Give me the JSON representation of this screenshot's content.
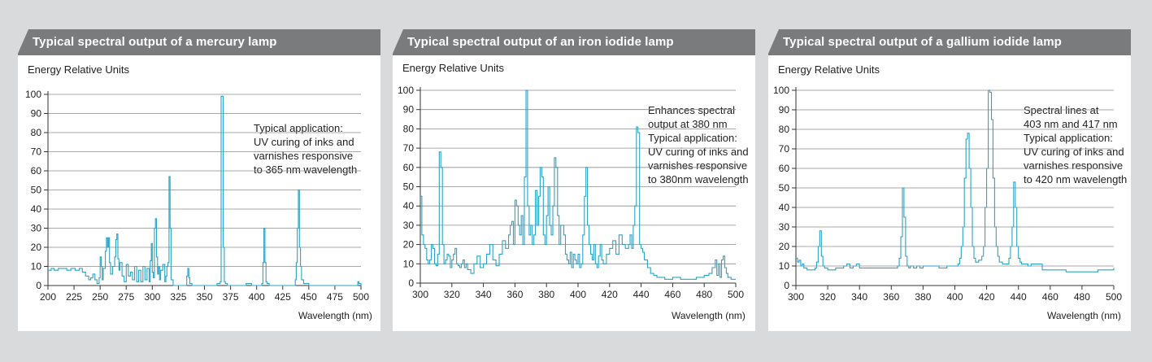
{
  "colors": {
    "line": "#2aa3c6",
    "grid": "#8c8c8c",
    "axis": "#333333",
    "title_bg": "#7a7b7d",
    "page_bg": "#d9dadb"
  },
  "chart_data": [
    {
      "type": "line",
      "title": "Typical spectral output of a mercury lamp",
      "ylabel": "Energy Relative Units",
      "xlabel": "Wavelength (nm)",
      "xlim": [
        200,
        500
      ],
      "ylim": [
        0,
        100
      ],
      "xticks": [
        "200",
        "225",
        "250",
        "275",
        "300",
        "325",
        "350",
        "375",
        "400",
        "425",
        "450",
        "475",
        "500"
      ],
      "yticks": [
        "0",
        "10",
        "20",
        "30",
        "40",
        "50",
        "60",
        "70",
        "80",
        "90",
        "100"
      ],
      "annotation": [
        "Typical application:",
        "UV curing of inks and",
        "varnishes responsive",
        "to 365 nm wavelength"
      ],
      "series": [
        {
          "x": [
            200,
            203,
            206,
            210,
            214,
            218,
            222,
            226,
            230,
            233,
            236,
            239,
            241,
            243,
            245,
            247,
            249,
            250,
            251,
            252,
            253,
            255,
            256,
            257,
            258,
            259,
            260,
            262,
            264,
            265,
            266,
            267,
            268,
            269,
            271,
            273,
            275,
            277,
            279,
            281,
            283,
            285,
            287,
            289,
            291,
            293,
            295,
            297,
            298,
            299,
            300,
            301,
            302,
            303,
            304,
            305,
            306,
            307,
            308,
            310,
            312,
            313,
            314,
            315,
            316,
            317,
            318,
            320,
            325,
            330,
            333,
            334,
            335,
            336,
            338,
            340,
            345,
            350,
            355,
            360,
            362,
            364,
            365,
            366,
            367,
            368,
            369,
            370,
            372,
            375,
            380,
            385,
            390,
            395,
            400,
            403,
            405,
            406,
            407,
            408,
            409,
            410,
            412,
            415,
            420,
            425,
            430,
            435,
            437,
            438,
            439,
            440,
            441,
            442,
            443,
            445,
            450,
            455,
            460,
            465,
            470,
            475,
            480,
            485,
            490,
            495,
            497,
            498,
            500
          ],
          "y": [
            8,
            9,
            8,
            9,
            9,
            8,
            9,
            8,
            9,
            7,
            5,
            3,
            4,
            6,
            3,
            1,
            4,
            15,
            10,
            3,
            9,
            18,
            25,
            20,
            25,
            12,
            6,
            10,
            15,
            24,
            27,
            14,
            8,
            12,
            5,
            2,
            11,
            5,
            7,
            3,
            10,
            2,
            8,
            2,
            10,
            3,
            9,
            2,
            13,
            22,
            7,
            4,
            30,
            35,
            15,
            6,
            10,
            3,
            8,
            11,
            2,
            5,
            10,
            12,
            57,
            30,
            3,
            0,
            0,
            0,
            5,
            9,
            4,
            1,
            0,
            0,
            0,
            0,
            0,
            0,
            1,
            1,
            2,
            99,
            99,
            20,
            2,
            1,
            0,
            0,
            0,
            0,
            1,
            0,
            0,
            0,
            1,
            12,
            30,
            12,
            2,
            1,
            0,
            0,
            0,
            0,
            0,
            0,
            3,
            12,
            30,
            50,
            20,
            10,
            3,
            1,
            0,
            0,
            0,
            0,
            0,
            0,
            0,
            0,
            0,
            0,
            2,
            1,
            0
          ]
        }
      ]
    },
    {
      "type": "line",
      "title": "Typical spectral output of an iron iodide lamp",
      "ylabel": "Energy Relative Units",
      "xlabel": "Wavelength (nm)",
      "xlim": [
        300,
        500
      ],
      "ylim": [
        0,
        100
      ],
      "xticks": [
        "300",
        "320",
        "340",
        "360",
        "380",
        "400",
        "420",
        "440",
        "460",
        "480",
        "500"
      ],
      "yticks": [
        "0",
        "10",
        "20",
        "30",
        "40",
        "50",
        "60",
        "70",
        "80",
        "90",
        "100"
      ],
      "annotation": [
        "Enhances spectral",
        "output at 380 nm",
        "Typical application:",
        "UV curing of inks and",
        "varnishes responsive",
        "to 380nm wavelength"
      ],
      "series": [
        {
          "x": [
            300,
            301,
            302,
            303,
            304,
            305,
            306,
            307,
            308,
            309,
            310,
            311,
            312,
            313,
            314,
            315,
            316,
            317,
            318,
            319,
            320,
            321,
            322,
            323,
            324,
            325,
            326,
            327,
            328,
            329,
            330,
            332,
            334,
            336,
            338,
            340,
            342,
            344,
            346,
            348,
            350,
            352,
            354,
            356,
            357,
            358,
            359,
            360,
            361,
            362,
            363,
            364,
            365,
            366,
            367,
            368,
            369,
            370,
            371,
            372,
            373,
            374,
            375,
            376,
            377,
            378,
            379,
            380,
            381,
            382,
            383,
            384,
            385,
            386,
            387,
            388,
            389,
            390,
            391,
            392,
            393,
            394,
            395,
            396,
            397,
            398,
            399,
            400,
            401,
            402,
            403,
            404,
            405,
            406,
            407,
            408,
            409,
            410,
            411,
            412,
            413,
            414,
            415,
            416,
            418,
            420,
            422,
            424,
            426,
            428,
            430,
            432,
            433,
            434,
            435,
            436,
            437,
            438,
            439,
            440,
            441,
            442,
            444,
            446,
            448,
            450,
            455,
            460,
            465,
            470,
            475,
            480,
            483,
            485,
            487,
            488,
            489,
            490,
            491,
            492,
            493,
            494,
            495,
            496,
            497,
            498,
            500
          ],
          "y": [
            45,
            25,
            20,
            18,
            12,
            10,
            12,
            20,
            18,
            10,
            9,
            15,
            68,
            60,
            20,
            10,
            12,
            15,
            14,
            8,
            12,
            15,
            18,
            10,
            9,
            8,
            10,
            12,
            8,
            10,
            7,
            5,
            10,
            14,
            8,
            10,
            15,
            20,
            12,
            9,
            15,
            22,
            18,
            25,
            30,
            32,
            20,
            43,
            40,
            30,
            25,
            35,
            20,
            55,
            100,
            40,
            25,
            30,
            20,
            25,
            48,
            30,
            45,
            60,
            55,
            25,
            20,
            35,
            50,
            30,
            25,
            40,
            65,
            60,
            35,
            20,
            30,
            30,
            25,
            15,
            12,
            10,
            16,
            8,
            15,
            12,
            10,
            15,
            8,
            10,
            25,
            45,
            60,
            30,
            20,
            15,
            12,
            20,
            10,
            8,
            14,
            20,
            12,
            10,
            15,
            18,
            22,
            15,
            25,
            20,
            18,
            20,
            25,
            18,
            30,
            40,
            81,
            78,
            20,
            18,
            16,
            12,
            8,
            5,
            4,
            3,
            2,
            3,
            2,
            2,
            3,
            4,
            5,
            8,
            12,
            4,
            10,
            3,
            12,
            14,
            8,
            5,
            3,
            3,
            2,
            2,
            2
          ]
        }
      ]
    },
    {
      "type": "line",
      "title": "Typical spectral output of a gallium iodide lamp",
      "ylabel": "Energy Relative Units",
      "xlabel": "Wavelength (nm)",
      "xlim": [
        300,
        500
      ],
      "ylim": [
        0,
        100
      ],
      "xticks": [
        "300",
        "320",
        "340",
        "360",
        "380",
        "400",
        "420",
        "440",
        "460",
        "480",
        "500"
      ],
      "yticks": [
        "0",
        "10",
        "20",
        "30",
        "40",
        "50",
        "60",
        "70",
        "80",
        "90",
        "100"
      ],
      "annotation": [
        "Spectral lines at",
        "403 nm and 417 nm",
        "Typical application:",
        "UV curing of inks and",
        "varnishes responsive",
        "to 420 nm wavelength"
      ],
      "series": [
        {
          "x": [
            300,
            301,
            302,
            303,
            304,
            305,
            307,
            310,
            312,
            313,
            314,
            315,
            316,
            317,
            318,
            320,
            325,
            330,
            332,
            334,
            336,
            338,
            340,
            345,
            350,
            355,
            360,
            364,
            365,
            366,
            367,
            368,
            369,
            370,
            371,
            372,
            374,
            376,
            378,
            380,
            385,
            390,
            395,
            400,
            402,
            403,
            404,
            405,
            406,
            407,
            408,
            409,
            410,
            411,
            412,
            413,
            414,
            415,
            417,
            418,
            419,
            420,
            421,
            422,
            423,
            424,
            425,
            426,
            427,
            428,
            430,
            432,
            434,
            435,
            436,
            437,
            438,
            439,
            440,
            441,
            442,
            444,
            446,
            448,
            450,
            455,
            460,
            465,
            470,
            475,
            480,
            485,
            490,
            495,
            500
          ],
          "y": [
            14,
            12,
            13,
            10,
            11,
            9,
            8,
            8,
            9,
            12,
            20,
            28,
            15,
            10,
            9,
            8,
            9,
            10,
            11,
            9,
            10,
            11,
            9,
            9,
            9,
            9,
            9,
            10,
            14,
            25,
            50,
            35,
            15,
            10,
            9,
            10,
            9,
            10,
            9,
            10,
            10,
            9,
            10,
            10,
            11,
            14,
            20,
            30,
            55,
            75,
            78,
            60,
            40,
            20,
            14,
            12,
            12,
            13,
            15,
            20,
            40,
            60,
            100,
            99,
            85,
            55,
            30,
            20,
            15,
            12,
            11,
            11,
            14,
            20,
            30,
            53,
            40,
            20,
            14,
            12,
            11,
            11,
            10,
            11,
            11,
            8,
            8,
            8,
            7,
            7,
            7,
            7,
            8,
            8,
            9
          ]
        }
      ]
    }
  ]
}
